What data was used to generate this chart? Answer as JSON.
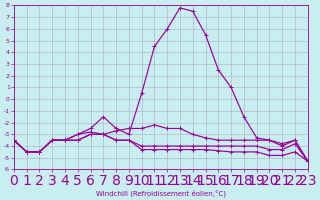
{
  "xlabel": "Windchill (Refroidissement éolien,°C)",
  "x_values": [
    0,
    1,
    2,
    3,
    4,
    5,
    6,
    7,
    8,
    9,
    10,
    11,
    12,
    13,
    14,
    15,
    16,
    17,
    18,
    19,
    20,
    21,
    22,
    23
  ],
  "line_peak": [
    -3.5,
    -4.5,
    -4.5,
    -3.5,
    -3.5,
    -3.0,
    -2.5,
    -1.5,
    -2.5,
    -3.0,
    0.5,
    4.5,
    6.0,
    7.8,
    7.5,
    5.5,
    2.5,
    1.0,
    -1.5,
    -3.3,
    -3.5,
    -4.0,
    -3.5,
    -5.3
  ],
  "line_mid": [
    -3.5,
    -4.5,
    -4.5,
    -3.5,
    -3.5,
    -3.0,
    -2.8,
    -3.0,
    -2.7,
    -2.5,
    -2.5,
    -2.2,
    -2.5,
    -2.5,
    -3.0,
    -3.3,
    -3.5,
    -3.5,
    -3.5,
    -3.5,
    -3.5,
    -3.8,
    -3.5,
    -5.3
  ],
  "line_flat1": [
    -3.5,
    -4.5,
    -4.5,
    -3.5,
    -3.5,
    -3.5,
    -3.0,
    -3.0,
    -3.5,
    -3.5,
    -4.0,
    -4.0,
    -4.0,
    -4.0,
    -4.0,
    -4.0,
    -4.0,
    -4.0,
    -4.0,
    -4.0,
    -4.3,
    -4.3,
    -3.8,
    -5.3
  ],
  "line_flat2": [
    -3.5,
    -4.5,
    -4.5,
    -3.5,
    -3.5,
    -3.5,
    -3.0,
    -3.0,
    -3.5,
    -3.5,
    -4.3,
    -4.3,
    -4.3,
    -4.3,
    -4.3,
    -4.3,
    -4.4,
    -4.5,
    -4.5,
    -4.5,
    -4.8,
    -4.8,
    -4.5,
    -5.3
  ],
  "ylim": [
    -6,
    8
  ],
  "xlim": [
    0,
    23
  ],
  "ytick_labels": [
    "8",
    "7",
    "6",
    "5",
    "4",
    "3",
    "2",
    "1",
    "0",
    "-1",
    "-2",
    "-3",
    "-4",
    "-5",
    "-6"
  ],
  "ytick_vals": [
    8,
    7,
    6,
    5,
    4,
    3,
    2,
    1,
    0,
    -1,
    -2,
    -3,
    -4,
    -5,
    -6
  ],
  "xtick_vals": [
    0,
    1,
    2,
    3,
    4,
    5,
    6,
    7,
    8,
    9,
    10,
    11,
    12,
    13,
    14,
    15,
    16,
    17,
    18,
    19,
    20,
    21,
    22,
    23
  ],
  "line_color": "#990099",
  "bg_color": "#c8eef0",
  "grid_color": "#aaaacc"
}
